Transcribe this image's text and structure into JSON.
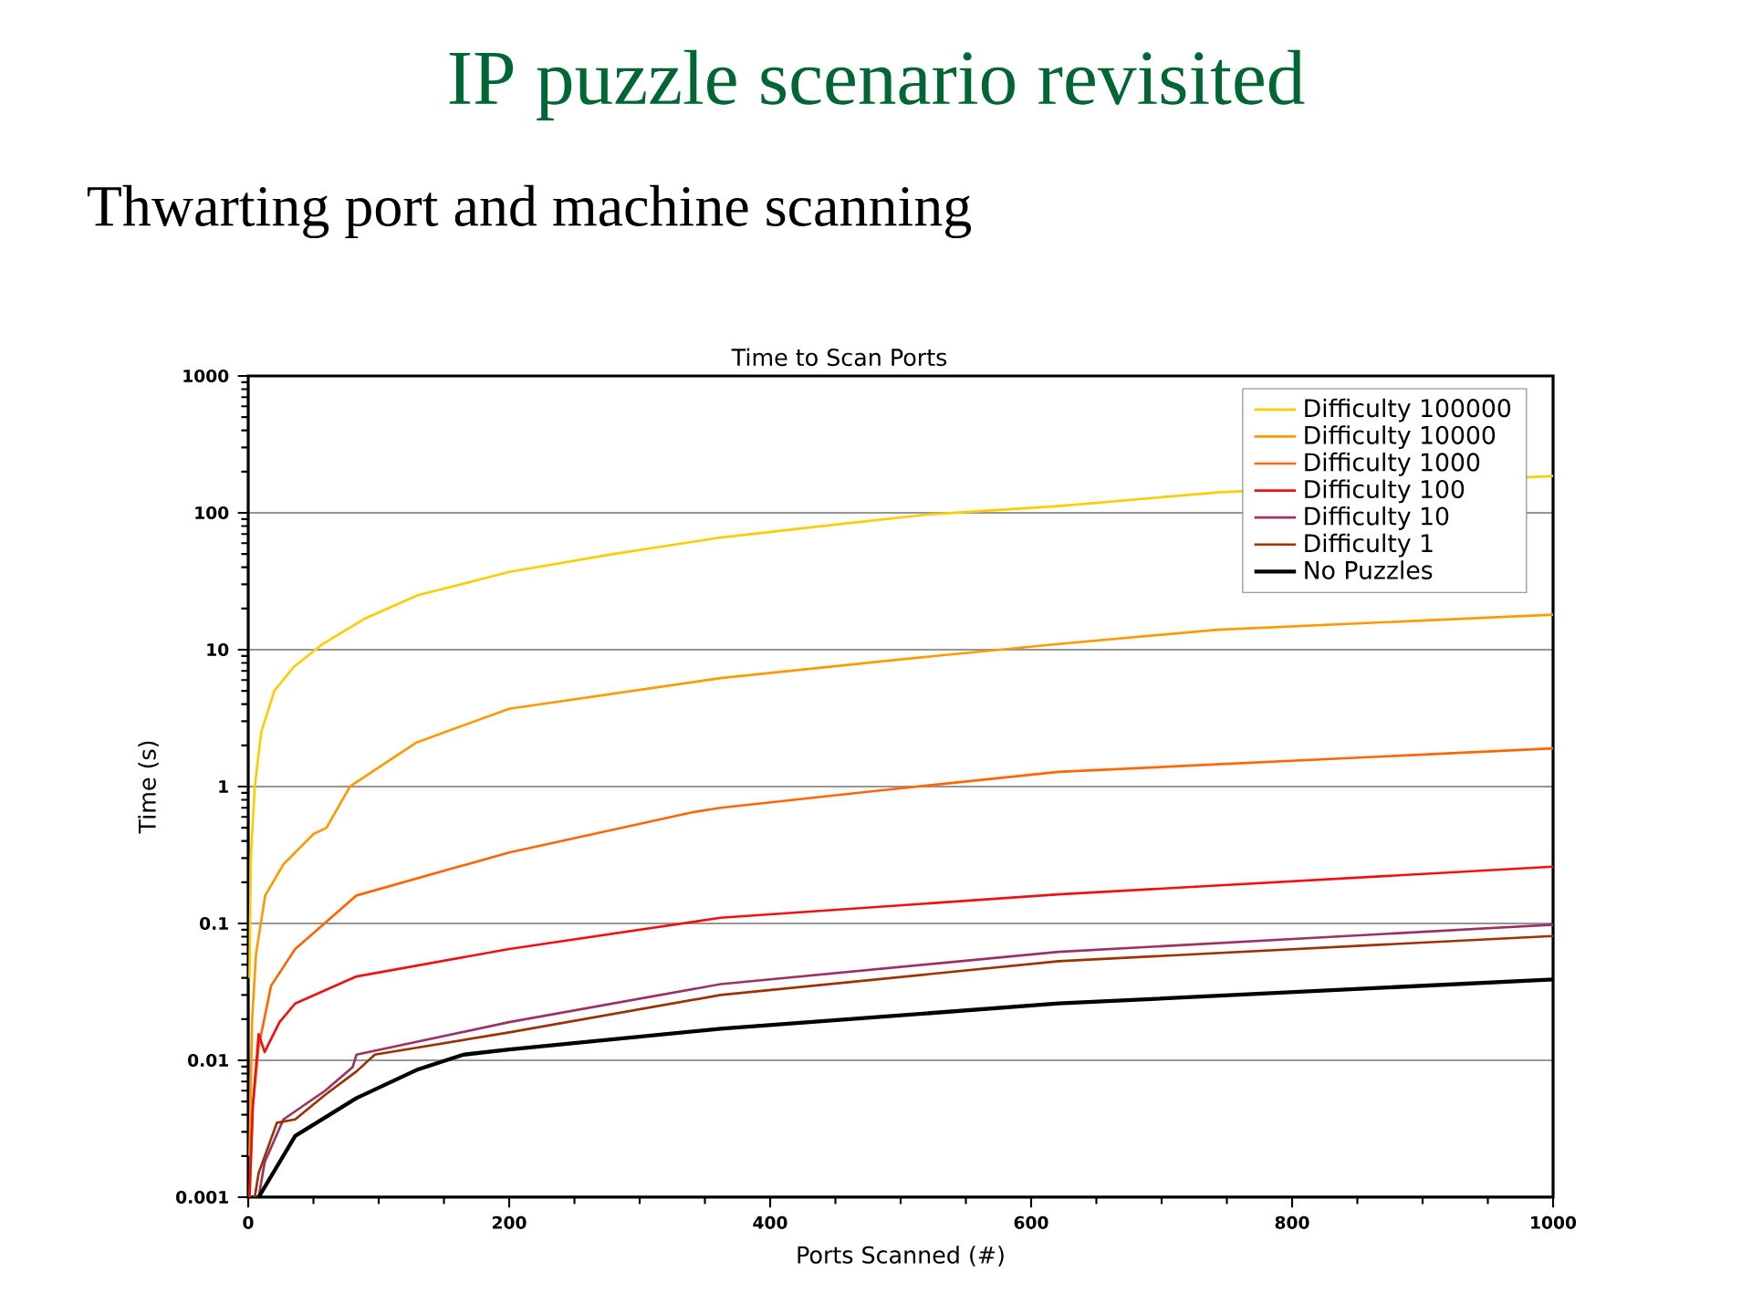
{
  "chart_data": {
    "type": "line",
    "title": "IP puzzle scenario revisited",
    "subtitle": "Thwarting port and machine scanning",
    "annotations": [
      "Time to Scan Ports"
    ],
    "xlabel": "Ports Scanned (#)",
    "ylabel": "Time (s)",
    "xlim": [
      0,
      1000
    ],
    "xticks": [
      0,
      200,
      400,
      600,
      800,
      1000
    ],
    "ylim": [
      0.001,
      1000
    ],
    "yticks": [
      0.001,
      0.01,
      0.1,
      1,
      10,
      100,
      1000
    ],
    "log": "y",
    "grid": "y",
    "legend": "top right",
    "marker": "none",
    "line_style": "solid",
    "series": [
      {
        "name": "Difficulty 100000",
        "color": "#ffcc00",
        "x": [
          1,
          2,
          5,
          10,
          20,
          35,
          57,
          90,
          130,
          200,
          280,
          362,
          450,
          520,
          621,
          743,
          850,
          1000
        ],
        "values": [
          0.04,
          0.3,
          1,
          2.5,
          5,
          7.5,
          11,
          17,
          25,
          37,
          50,
          66,
          82,
          97,
          112,
          141,
          null,
          186
        ]
      },
      {
        "name": "Difficulty 10000",
        "color": "#ff9900",
        "x": [
          1,
          3,
          6,
          13,
          27,
          50,
          60,
          78,
          129,
          200,
          362,
          500,
          621,
          743,
          1000
        ],
        "values": [
          0.002,
          0.02,
          0.06,
          0.16,
          0.27,
          0.45,
          0.5,
          1,
          2.1,
          3.7,
          6.2,
          8.5,
          11,
          14,
          18
        ]
      },
      {
        "name": "Difficulty 1000",
        "color": "#ff6600",
        "x": [
          1,
          3.5,
          8,
          17.5,
          36,
          83,
          200,
          341,
          362,
          481,
          621,
          1000
        ],
        "values": [
          0.001,
          0.0046,
          0.0126,
          0.035,
          0.065,
          0.16,
          0.33,
          0.65,
          0.7,
          0.93,
          1.28,
          1.9
        ]
      },
      {
        "name": "Difficulty 100",
        "color": "#ee1111",
        "x": [
          1,
          3.5,
          8,
          12.6,
          24,
          36,
          83,
          200,
          362,
          621,
          1000
        ],
        "values": [
          0.001,
          0.0046,
          0.0155,
          0.0115,
          0.019,
          0.026,
          0.041,
          0.065,
          0.11,
          0.163,
          0.26
        ]
      },
      {
        "name": "Difficulty 10",
        "color": "#993366",
        "x": [
          8,
          12.6,
          27,
          59,
          80,
          83,
          200,
          362,
          621,
          1000
        ],
        "values": [
          0.001,
          0.0018,
          0.0037,
          0.006,
          0.0089,
          0.011,
          0.019,
          0.036,
          0.062,
          0.098
        ]
      },
      {
        "name": "Difficulty 1",
        "color": "#993300",
        "x": [
          5,
          8,
          22,
          36,
          59,
          83,
          97,
          200,
          362,
          621,
          1000
        ],
        "values": [
          0.001,
          0.0015,
          0.0035,
          0.0037,
          0.0056,
          0.0083,
          0.011,
          0.016,
          0.03,
          0.053,
          0.081
        ]
      },
      {
        "name": "No Puzzles",
        "color": "#000000",
        "x": [
          8,
          36,
          83,
          129,
          165,
          200,
          362,
          621,
          1000
        ],
        "values": [
          0.001,
          0.0028,
          0.0053,
          0.0085,
          0.011,
          0.012,
          0.017,
          0.026,
          0.039
        ]
      }
    ]
  }
}
